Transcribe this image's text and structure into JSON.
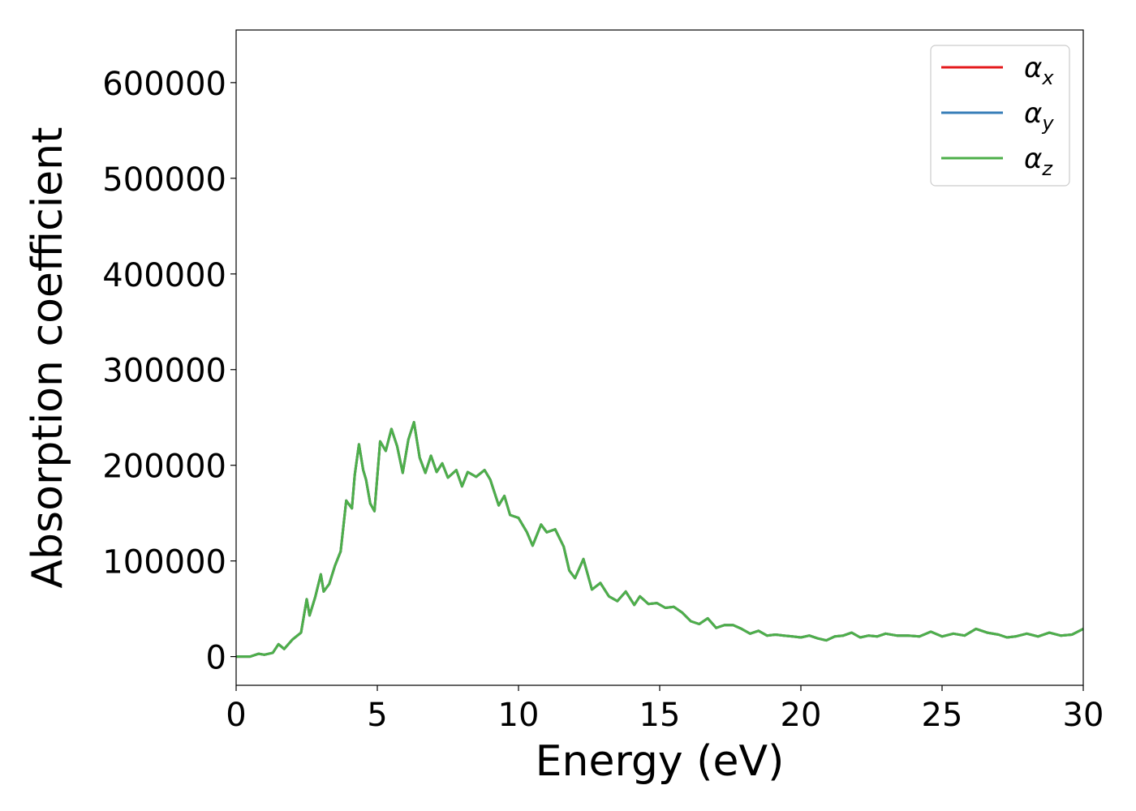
{
  "chart_data": {
    "type": "line",
    "title": "",
    "xlabel": "Energy (eV)",
    "ylabel": "Absorption coefficient",
    "xlim": [
      0,
      30
    ],
    "ylim": [
      -30000,
      655000
    ],
    "xticks": [
      0,
      5,
      10,
      15,
      20,
      25,
      30
    ],
    "yticks": [
      0,
      100000,
      200000,
      300000,
      400000,
      500000,
      600000
    ],
    "xtick_labels": [
      "0",
      "5",
      "10",
      "15",
      "20",
      "25",
      "30"
    ],
    "ytick_labels": [
      "0",
      "100000",
      "200000",
      "300000",
      "400000",
      "500000",
      "600000"
    ],
    "grid": false,
    "legend_position": "top-right",
    "x": [
      0,
      0.5,
      0.8,
      1.0,
      1.3,
      1.5,
      1.7,
      2.0,
      2.3,
      2.5,
      2.6,
      2.8,
      3.0,
      3.1,
      3.3,
      3.5,
      3.7,
      3.9,
      4.1,
      4.2,
      4.35,
      4.5,
      4.6,
      4.75,
      4.9,
      5.1,
      5.3,
      5.5,
      5.7,
      5.9,
      6.1,
      6.3,
      6.5,
      6.7,
      6.9,
      7.1,
      7.3,
      7.5,
      7.8,
      8.0,
      8.2,
      8.5,
      8.8,
      9.0,
      9.3,
      9.5,
      9.7,
      10.0,
      10.3,
      10.5,
      10.8,
      11.0,
      11.3,
      11.6,
      11.8,
      12.0,
      12.3,
      12.6,
      12.9,
      13.2,
      13.5,
      13.8,
      14.1,
      14.3,
      14.6,
      14.9,
      15.2,
      15.5,
      15.8,
      16.1,
      16.4,
      16.7,
      17.0,
      17.3,
      17.6,
      17.9,
      18.2,
      18.5,
      18.8,
      19.1,
      19.4,
      19.7,
      20.0,
      20.3,
      20.6,
      20.9,
      21.2,
      21.5,
      21.8,
      22.1,
      22.4,
      22.7,
      23.0,
      23.4,
      23.8,
      24.2,
      24.6,
      25.0,
      25.4,
      25.8,
      26.2,
      26.6,
      27.0,
      27.3,
      27.6,
      28.0,
      28.4,
      28.8,
      29.2,
      29.6,
      30.0
    ],
    "series": [
      {
        "name": "αx",
        "color": "#e41a1c"
      },
      {
        "name": "αy",
        "color": "#377eb8"
      },
      {
        "name": "αz",
        "color": "#4daf4a",
        "values": [
          0,
          0,
          3000,
          2000,
          4000,
          13000,
          8000,
          18000,
          25000,
          60000,
          43000,
          62000,
          86000,
          68000,
          76000,
          95000,
          110000,
          163000,
          155000,
          190000,
          222000,
          195000,
          185000,
          160000,
          152000,
          225000,
          215000,
          238000,
          220000,
          192000,
          227000,
          245000,
          208000,
          192000,
          210000,
          193000,
          202000,
          187000,
          195000,
          178000,
          193000,
          188000,
          195000,
          185000,
          158000,
          168000,
          148000,
          145000,
          130000,
          116000,
          138000,
          130000,
          133000,
          115000,
          90000,
          82000,
          102000,
          70000,
          77000,
          63000,
          58000,
          68000,
          54000,
          63000,
          55000,
          56000,
          51000,
          52000,
          46000,
          37000,
          34000,
          40000,
          30000,
          33000,
          33000,
          29000,
          24000,
          27000,
          22000,
          23000,
          22000,
          21000,
          20000,
          22000,
          19000,
          17000,
          21000,
          22000,
          25000,
          20000,
          22000,
          21000,
          24000,
          22000,
          22000,
          21000,
          26000,
          21000,
          24000,
          22000,
          29000,
          25000,
          23000,
          20000,
          21000,
          24000,
          21000,
          25000,
          22000,
          23000,
          29000
        ]
      }
    ]
  }
}
